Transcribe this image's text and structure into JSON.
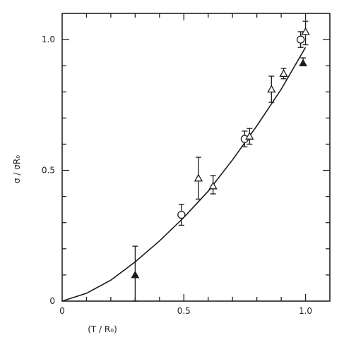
{
  "chart_data": {
    "type": "scatter",
    "title": "",
    "xlabel": "(T / R₀)",
    "ylabel": "σ / σR₀",
    "xlim": [
      0,
      1.1
    ],
    "ylim": [
      0,
      1.1
    ],
    "x_ticks": [
      0,
      0.5,
      1.0
    ],
    "x_tick_labels": [
      "0",
      "0.5",
      "1.0"
    ],
    "y_ticks": [
      0,
      0.5,
      1.0
    ],
    "y_tick_labels": [
      "0",
      "0.5",
      "1.0"
    ],
    "x_minor_step": 0.1,
    "y_minor_step": 0.1,
    "grid": false,
    "legend": "none",
    "fit_curve": {
      "x": [
        0,
        0.1,
        0.2,
        0.3,
        0.4,
        0.5,
        0.6,
        0.7,
        0.8,
        0.9,
        1.0
      ],
      "y": [
        0,
        0.03,
        0.08,
        0.15,
        0.23,
        0.32,
        0.42,
        0.54,
        0.67,
        0.81,
        0.97
      ]
    },
    "series": [
      {
        "marker": "circle-open",
        "points": [
          {
            "x": 0.49,
            "y": 0.33,
            "y_low": 0.29,
            "y_high": 0.37
          },
          {
            "x": 0.75,
            "y": 0.62,
            "y_low": 0.59,
            "y_high": 0.65
          },
          {
            "x": 0.98,
            "y": 1.0,
            "y_low": 0.97,
            "y_high": 1.03
          }
        ]
      },
      {
        "marker": "triangle-open",
        "points": [
          {
            "x": 0.56,
            "y": 0.47,
            "y_low": 0.39,
            "y_high": 0.55
          },
          {
            "x": 0.62,
            "y": 0.44,
            "y_low": 0.41,
            "y_high": 0.48
          },
          {
            "x": 0.77,
            "y": 0.63,
            "y_low": 0.6,
            "y_high": 0.66
          },
          {
            "x": 0.86,
            "y": 0.81,
            "y_low": 0.76,
            "y_high": 0.86
          },
          {
            "x": 0.91,
            "y": 0.87,
            "y_low": 0.85,
            "y_high": 0.89
          },
          {
            "x": 1.0,
            "y": 1.03,
            "y_low": 0.98,
            "y_high": 1.07
          }
        ]
      },
      {
        "marker": "triangle-filled",
        "points": [
          {
            "x": 0.3,
            "y": 0.1,
            "y_low": 0.0,
            "y_high": 0.21
          },
          {
            "x": 0.99,
            "y": 0.91,
            "y_low": 0.9,
            "y_high": 0.93
          }
        ]
      }
    ]
  }
}
